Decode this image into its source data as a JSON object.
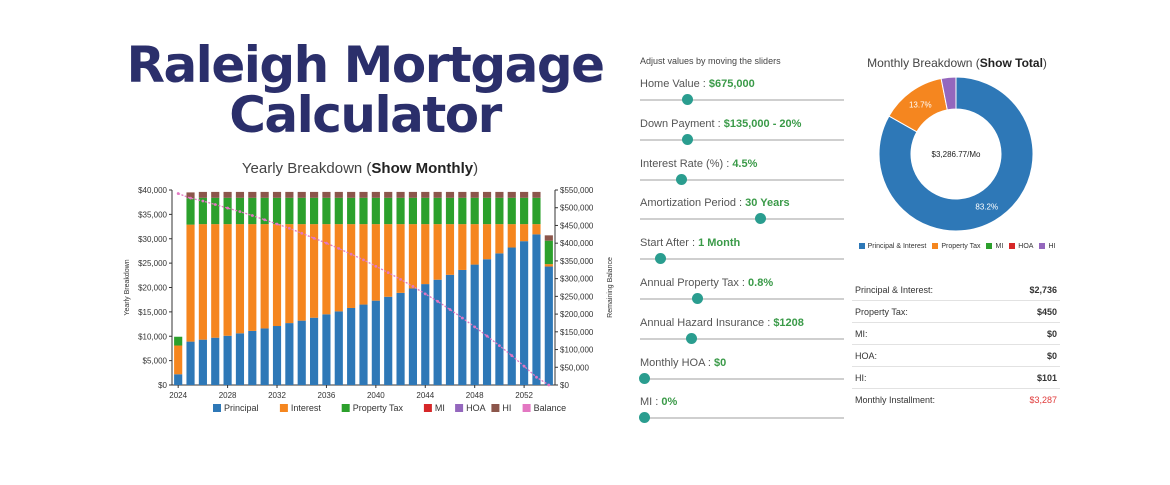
{
  "header": {
    "title": "Raleigh Mortgage Calculator"
  },
  "yearly_chart": {
    "title_prefix": "Yearly Breakdown (",
    "title_link": "Show Monthly",
    "title_suffix": ")"
  },
  "controls": {
    "hint": "Adjust values by moving the sliders",
    "sliders": [
      {
        "label": "Home Value : ",
        "value": "$675,000",
        "position": 0.23
      },
      {
        "label": "Down Payment : ",
        "value": "$135,000 - 20%",
        "position": 0.23
      },
      {
        "label": "Interest Rate (%) : ",
        "value": "4.5%",
        "position": 0.2
      },
      {
        "label": "Amortization Period : ",
        "value": "30 Years",
        "position": 0.59
      },
      {
        "label": "Start After : ",
        "value": "1 Month",
        "position": 0.1
      },
      {
        "label": "Annual Property Tax : ",
        "value": "0.8%",
        "position": 0.28
      },
      {
        "label": "Annual Hazard Insurance : ",
        "value": "$1208",
        "position": 0.25
      },
      {
        "label": "Monthly HOA : ",
        "value": "$0",
        "position": 0.02
      },
      {
        "label": "MI : ",
        "value": "0%",
        "position": 0.02
      }
    ]
  },
  "monthly_chart": {
    "title_prefix": "Monthly Breakdown (",
    "title_link": "Show Total",
    "title_suffix": ")",
    "center_label": "$3,286.77/Mo"
  },
  "breakdown": [
    {
      "label": "Principal & Interest:",
      "value": "$2,736"
    },
    {
      "label": "Property Tax:",
      "value": "$450"
    },
    {
      "label": "MI:",
      "value": "$0"
    },
    {
      "label": "HOA:",
      "value": "$0"
    },
    {
      "label": "HI:",
      "value": "$101"
    },
    {
      "label": "Monthly Installment:",
      "value": "$3,287",
      "highlight": true
    }
  ],
  "chart_data": [
    {
      "type": "bar",
      "title": "Yearly Breakdown (Show Monthly)",
      "ylabel": "Yearly Breakdown",
      "y2label": "Remaining Balance",
      "ylim": [
        0,
        40000
      ],
      "y2lim": [
        0,
        550000
      ],
      "yticks": [
        "$0",
        "$5,000",
        "$10,000",
        "$15,000",
        "$20,000",
        "$25,000",
        "$30,000",
        "$35,000",
        "$40,000"
      ],
      "y2ticks": [
        "$0",
        "$50,000",
        "$100,000",
        "$150,000",
        "$200,000",
        "$250,000",
        "$300,000",
        "$350,000",
        "$400,000",
        "$450,000",
        "$500,000",
        "$550,000"
      ],
      "xticks": [
        "2024",
        "2028",
        "2032",
        "2036",
        "2040",
        "2044",
        "2048",
        "2052"
      ],
      "legend_position": "bottom",
      "colors": {
        "Principal": "#2e78b7",
        "Interest": "#f5861f",
        "Property Tax": "#2ca02c",
        "MI": "#d62728",
        "HOA": "#9467bd",
        "HI": "#8c564b",
        "Balance": "#e377c2"
      },
      "categories": [
        "2024",
        "2025",
        "2026",
        "2027",
        "2028",
        "2029",
        "2030",
        "2031",
        "2032",
        "2033",
        "2034",
        "2035",
        "2036",
        "2037",
        "2038",
        "2039",
        "2040",
        "2041",
        "2042",
        "2043",
        "2044",
        "2045",
        "2046",
        "2047",
        "2048",
        "2049",
        "2050",
        "2051",
        "2052",
        "2053",
        "2054"
      ],
      "series": [
        {
          "name": "Principal",
          "values": [
            2200,
            8900,
            9300,
            9700,
            10100,
            10600,
            11100,
            11600,
            12100,
            12700,
            13200,
            13800,
            14500,
            15100,
            15800,
            16500,
            17300,
            18100,
            18900,
            19800,
            20700,
            21600,
            22600,
            23600,
            24700,
            25800,
            27000,
            28200,
            29500,
            30900,
            24300
          ]
        },
        {
          "name": "Interest",
          "values": [
            5900,
            24000,
            23700,
            23300,
            22900,
            22400,
            21900,
            21400,
            20900,
            20300,
            19800,
            19200,
            18500,
            17900,
            17200,
            16500,
            15700,
            14900,
            14100,
            13200,
            12300,
            11400,
            10400,
            9400,
            8300,
            7200,
            6000,
            4800,
            3500,
            2100,
            500
          ]
        },
        {
          "name": "Property Tax",
          "values": [
            1800,
            5400,
            5400,
            5400,
            5400,
            5400,
            5400,
            5400,
            5400,
            5400,
            5400,
            5400,
            5400,
            5400,
            5400,
            5400,
            5400,
            5400,
            5400,
            5400,
            5400,
            5400,
            5400,
            5400,
            5400,
            5400,
            5400,
            5400,
            5400,
            5400,
            4800
          ]
        },
        {
          "name": "MI",
          "values": [
            0,
            0,
            0,
            0,
            0,
            0,
            0,
            0,
            0,
            0,
            0,
            0,
            0,
            0,
            0,
            0,
            0,
            0,
            0,
            0,
            0,
            0,
            0,
            0,
            0,
            0,
            0,
            0,
            0,
            0,
            0
          ]
        },
        {
          "name": "HOA",
          "values": [
            0,
            0,
            0,
            0,
            0,
            0,
            0,
            0,
            0,
            0,
            0,
            0,
            0,
            0,
            0,
            0,
            0,
            0,
            0,
            0,
            0,
            0,
            0,
            0,
            0,
            0,
            0,
            0,
            0,
            0,
            0
          ]
        },
        {
          "name": "HI",
          "values": [
            0,
            1208,
            1208,
            1208,
            1208,
            1208,
            1208,
            1208,
            1208,
            1208,
            1208,
            1208,
            1208,
            1208,
            1208,
            1208,
            1208,
            1208,
            1208,
            1208,
            1208,
            1208,
            1208,
            1208,
            1208,
            1208,
            1208,
            1208,
            1208,
            1208,
            1100
          ]
        },
        {
          "name": "Balance",
          "type": "line",
          "values": [
            540000,
            527000,
            519000,
            509000,
            499000,
            489000,
            478000,
            466000,
            454000,
            442000,
            428000,
            414000,
            400000,
            385000,
            369000,
            353000,
            335000,
            317000,
            298000,
            278000,
            257000,
            236000,
            213000,
            189000,
            164000,
            138000,
            111000,
            83000,
            53000,
            22000,
            0
          ]
        }
      ]
    },
    {
      "type": "pie",
      "title": "Monthly Breakdown (Show Total)",
      "legend_position": "bottom",
      "slices": [
        {
          "name": "Principal & Interest",
          "value": 83.2,
          "label": "83.2%",
          "color": "#2e78b7"
        },
        {
          "name": "Property Tax",
          "value": 13.7,
          "label": "13.7%",
          "color": "#f5861f"
        },
        {
          "name": "MI",
          "value": 0,
          "label": "",
          "color": "#2ca02c"
        },
        {
          "name": "HOA",
          "value": 0,
          "label": "",
          "color": "#d62728"
        },
        {
          "name": "HI",
          "value": 3.1,
          "label": "",
          "color": "#9467bd"
        }
      ]
    }
  ]
}
